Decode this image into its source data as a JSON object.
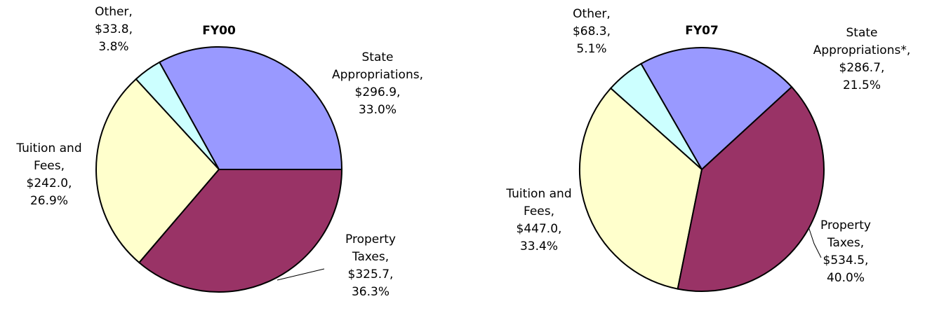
{
  "chart_data": [
    {
      "type": "pie",
      "title": "FY00",
      "startangle": 0,
      "categories": [
        "State Appropriations,",
        "Other,",
        "Tuition and Fees,",
        "Property Taxes,"
      ],
      "values": [
        296.9,
        33.8,
        242.0,
        325.7
      ],
      "value_labels": [
        "$296.9,",
        "$33.8,",
        "$242.0,",
        "$325.7,"
      ],
      "percents": [
        33.0,
        3.8,
        26.9,
        36.3
      ],
      "percent_labels": [
        "33.0%",
        "3.8%",
        "26.9%",
        "36.3%"
      ],
      "colors": [
        "#9999ff",
        "#ccffff",
        "#ffffcc",
        "#993366"
      ]
    },
    {
      "type": "pie",
      "title": "FY07",
      "startangle": 42.6,
      "categories": [
        "State Appropriations*,",
        "Other,",
        "Tuition and Fees,",
        "Property Taxes,"
      ],
      "values": [
        286.7,
        68.3,
        447.0,
        534.5
      ],
      "value_labels": [
        "$286.7,",
        "$68.3,",
        "$447.0,",
        "$534.5,"
      ],
      "percents": [
        21.5,
        5.1,
        33.4,
        40.0
      ],
      "percent_labels": [
        "21.5%",
        "5.1%",
        "33.4%",
        "40.0%"
      ],
      "colors": [
        "#9999ff",
        "#ccffff",
        "#ffffcc",
        "#993366"
      ]
    }
  ]
}
